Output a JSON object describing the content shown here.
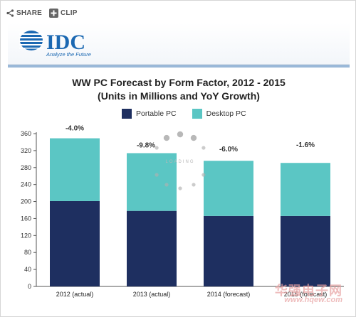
{
  "toolbar": {
    "share_label": "SHARE",
    "clip_label": "CLIP"
  },
  "logo": {
    "name": "IDC",
    "tagline": "Analyze the Future"
  },
  "loading": {
    "text": "LOADING"
  },
  "watermark": {
    "cn": "华强电子网",
    "url": "www.hqew.com"
  },
  "colors": {
    "portable": "#1e2f60",
    "desktop": "#5bc6c4",
    "logo_blue": "#1b68b2",
    "loading_dots": "#b0b0b0"
  },
  "chart_data": {
    "type": "bar",
    "stacked": true,
    "title": "WW PC Forecast by Form Factor, 2012 - 2015",
    "subtitle": "(Units in Millions and YoY Growth)",
    "categories": [
      "2012 (actual)",
      "2013 (actual)",
      "2014 (forecast)",
      "2015 (forecast)"
    ],
    "series": [
      {
        "name": "Portable PC",
        "values": [
          201,
          178,
          166,
          166
        ]
      },
      {
        "name": "Desktop PC",
        "values": [
          148,
          136,
          130,
          125
        ]
      }
    ],
    "annotations": [
      "-4.0%",
      "-9.8%",
      "-6.0%",
      "-1.6%"
    ],
    "ylim": [
      0,
      360
    ],
    "yticks": [
      0,
      40,
      80,
      120,
      160,
      200,
      240,
      280,
      320,
      360
    ],
    "grid": false,
    "legend_position": "top"
  }
}
